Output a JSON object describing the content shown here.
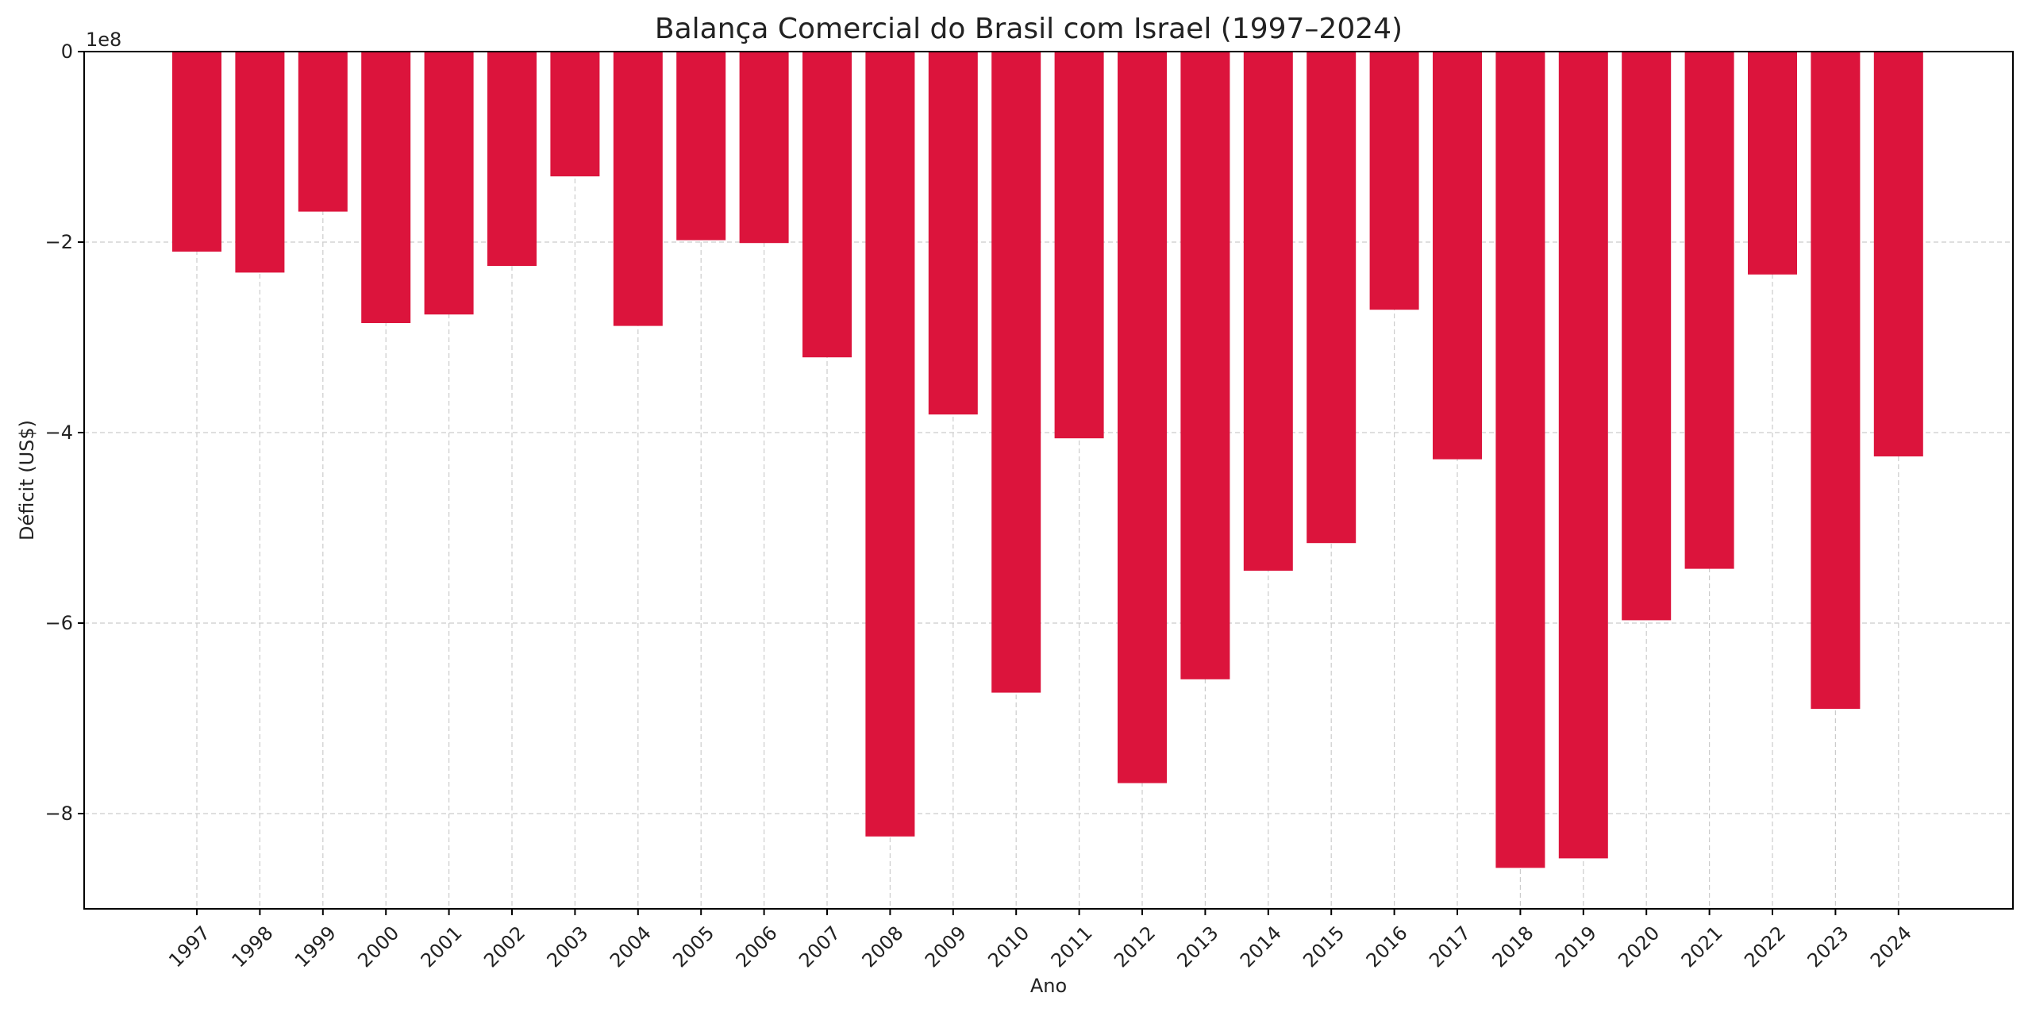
{
  "chart_data": {
    "type": "bar",
    "title": "Balança Comercial do Brasil com Israel (1997–2024)",
    "xlabel": "Ano",
    "ylabel": "Déficit (US$)",
    "y_offset_label": "1e8",
    "y_scale": 100000000,
    "ylim": [
      -900000000,
      0
    ],
    "yticks": [
      0,
      -200000000,
      -400000000,
      -600000000,
      -800000000
    ],
    "ytick_labels": [
      "0",
      "−2",
      "−4",
      "−6",
      "−8"
    ],
    "grid": true,
    "bar_color": "#dc143c",
    "categories": [
      "1997",
      "1998",
      "1999",
      "2000",
      "2001",
      "2002",
      "2003",
      "2004",
      "2005",
      "2006",
      "2007",
      "2008",
      "2009",
      "2010",
      "2011",
      "2012",
      "2013",
      "2014",
      "2015",
      "2016",
      "2017",
      "2018",
      "2019",
      "2020",
      "2021",
      "2022",
      "2023",
      "2024"
    ],
    "values": [
      -210000000,
      -232000000,
      -168000000,
      -285000000,
      -276000000,
      -225000000,
      -131000000,
      -288000000,
      -198000000,
      -201000000,
      -321000000,
      -824000000,
      -381000000,
      -673000000,
      -406000000,
      -768000000,
      -659000000,
      -545000000,
      -516000000,
      -271000000,
      -428000000,
      -857000000,
      -847000000,
      -597000000,
      -543000000,
      -234000000,
      -690000000,
      -425000000
    ]
  }
}
